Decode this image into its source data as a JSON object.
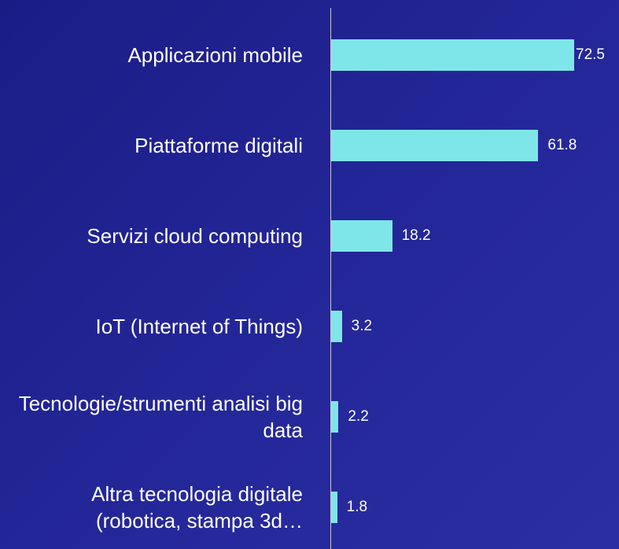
{
  "chart_data": {
    "type": "bar",
    "orientation": "horizontal",
    "categories": [
      "Applicazioni mobile",
      "Piattaforme digitali",
      "Servizi cloud computing",
      "IoT (Internet of Things)",
      "Tecnologie/strumenti analisi big data",
      "Altra tecnologia digitale (robotica, stampa 3d…"
    ],
    "values": [
      72.5,
      61.8,
      18.2,
      3.2,
      2.2,
      1.8
    ],
    "color": "#7ee6e8"
  }
}
